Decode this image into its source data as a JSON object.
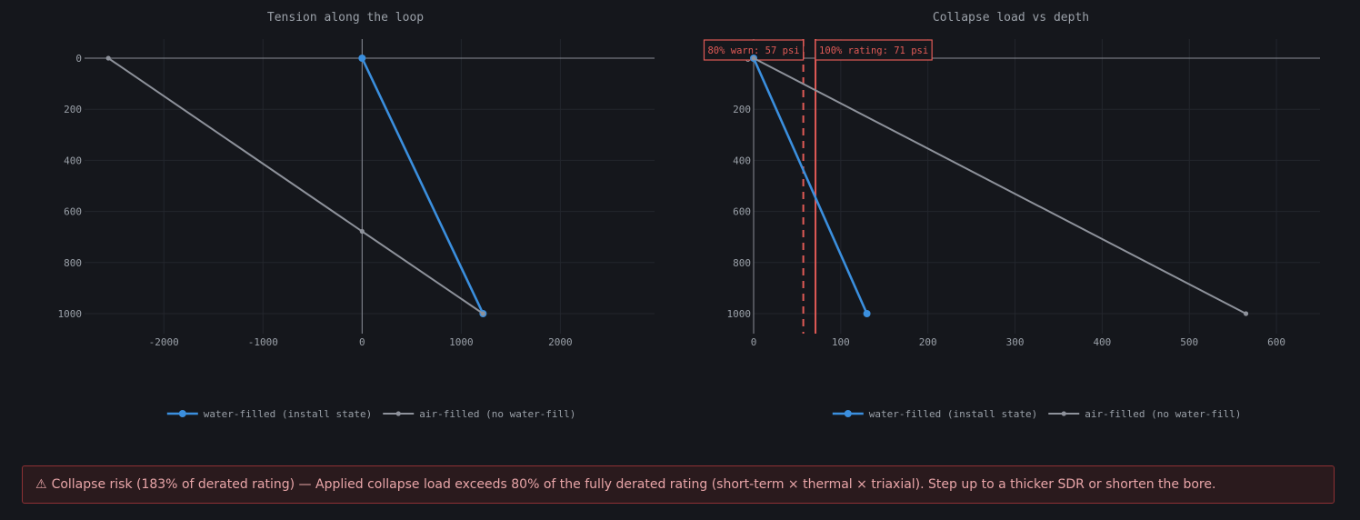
{
  "chart_data": [
    {
      "type": "line",
      "title": "Tension along the loop",
      "xlabel": "",
      "ylabel": "",
      "xlim": [
        -2800,
        2950
      ],
      "ylim": [
        0,
        1000
      ],
      "y_reversed": true,
      "xticks": [
        -2000,
        -1000,
        0,
        1000,
        2000
      ],
      "yticks": [
        0,
        200,
        400,
        600,
        800,
        1000
      ],
      "grid": true,
      "legend_position": "bottom",
      "series": [
        {
          "name": "water-filled (install state)",
          "color": "#3b8fde",
          "points": [
            {
              "x": 0,
              "y": 0
            },
            {
              "x": 1220,
              "y": 1000
            }
          ]
        },
        {
          "name": "air-filled (no water-fill)",
          "color": "#8e929b",
          "points": [
            {
              "x": -2560,
              "y": 0
            },
            {
              "x": 0,
              "y": 678
            },
            {
              "x": 1220,
              "y": 1000
            }
          ]
        }
      ]
    },
    {
      "type": "line",
      "title": "Collapse load vs depth",
      "xlabel": "",
      "ylabel": "",
      "xlim": [
        0,
        650
      ],
      "ylim": [
        0,
        1000
      ],
      "y_reversed": true,
      "xticks": [
        0,
        100,
        200,
        300,
        400,
        500,
        600
      ],
      "yticks": [
        0,
        200,
        400,
        600,
        800,
        1000
      ],
      "grid": true,
      "legend_position": "bottom",
      "series": [
        {
          "name": "water-filled (install state)",
          "color": "#3b8fde",
          "points": [
            {
              "x": 0,
              "y": 0
            },
            {
              "x": 130,
              "y": 1000
            }
          ]
        },
        {
          "name": "air-filled (no water-fill)",
          "color": "#8e929b",
          "points": [
            {
              "x": 0,
              "y": 0
            },
            {
              "x": 565,
              "y": 1000
            }
          ]
        }
      ],
      "reference_lines": [
        {
          "x": 57,
          "style": "dashed",
          "color": "#e05a56",
          "label": "80% warn: 57 psi"
        },
        {
          "x": 71,
          "style": "solid",
          "color": "#e05a56",
          "label": "100% rating: 71 psi"
        }
      ]
    }
  ],
  "alert": {
    "icon": "warning-icon",
    "icon_glyph": "⚠",
    "text": "Collapse risk (183% of derated rating) — Applied collapse load exceeds 80% of the fully derated rating (short-term × thermal × triaxial). Step up to a thicker SDR or shorten the bore."
  }
}
